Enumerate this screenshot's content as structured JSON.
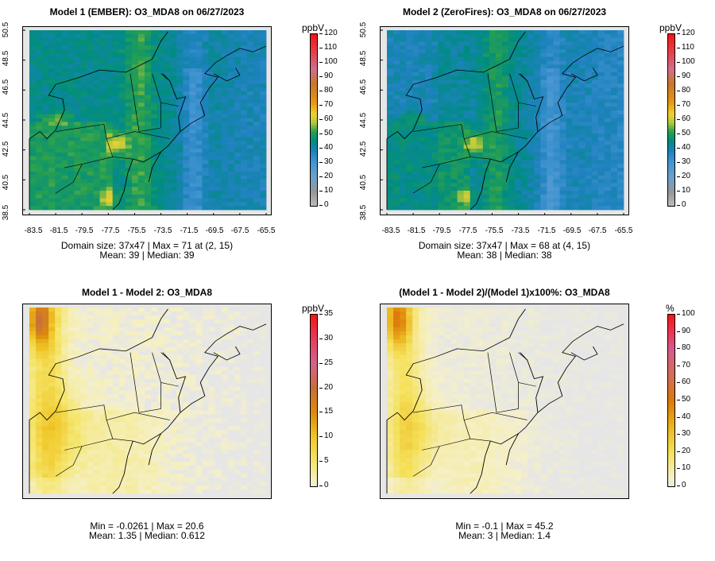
{
  "panels": [
    {
      "title": "Model 1 (EMBER): O3_MDA8 on 06/27/2023",
      "stats_line1": "Domain size: 37x47 | Max = 71 at (2, 15)",
      "stats_line2": "Mean: 39 |  Median: 39",
      "unit": "ppbV",
      "colorbar_ticks": [
        "120",
        "110",
        "100",
        "90",
        "80",
        "70",
        "60",
        "50",
        "40",
        "30",
        "20",
        "10",
        "0"
      ],
      "y_ticks": [
        "50.5",
        "48.5",
        "46.5",
        "44.5",
        "42.5",
        "40.5",
        "38.5"
      ],
      "x_ticks": [
        "-83.5",
        "-81.5",
        "-79.5",
        "-77.5",
        "-75.5",
        "-73.5",
        "-71.5",
        "-69.5",
        "-67.5",
        "-65.5"
      ]
    },
    {
      "title": "Model 2 (ZeroFires): O3_MDA8 on 06/27/2023",
      "stats_line1": "Domain size: 37x47 | Max = 68 at (4, 15)",
      "stats_line2": "Mean: 38 |  Median: 38",
      "unit": "ppbV",
      "colorbar_ticks": [
        "120",
        "110",
        "100",
        "90",
        "80",
        "70",
        "60",
        "50",
        "40",
        "30",
        "20",
        "10",
        "0"
      ],
      "y_ticks": [
        "50.5",
        "48.5",
        "46.5",
        "44.5",
        "42.5",
        "40.5",
        "38.5"
      ],
      "x_ticks": [
        "-83.5",
        "-81.5",
        "-79.5",
        "-77.5",
        "-75.5",
        "-73.5",
        "-71.5",
        "-69.5",
        "-67.5",
        "-65.5"
      ]
    },
    {
      "title": "Model 1 - Model 2: O3_MDA8",
      "stats_line1": "Min = -0.0261 | Max = 20.6",
      "stats_line2": "Mean: 1.35 |  Median: 0.612",
      "unit": "ppbV",
      "colorbar_ticks": [
        "35",
        "30",
        "25",
        "20",
        "15",
        "10",
        "5",
        "0"
      ]
    },
    {
      "title": "(Model 1 - Model 2)/(Model 1)x100%: O3_MDA8",
      "stats_line1": "Min = -0.1 | Max = 45.2",
      "stats_line2": "Mean: 3 |  Median: 1.4",
      "unit": "%",
      "colorbar_ticks": [
        "100",
        "90",
        "80",
        "70",
        "60",
        "50",
        "40",
        "30",
        "20",
        "10",
        "0"
      ]
    }
  ]
}
